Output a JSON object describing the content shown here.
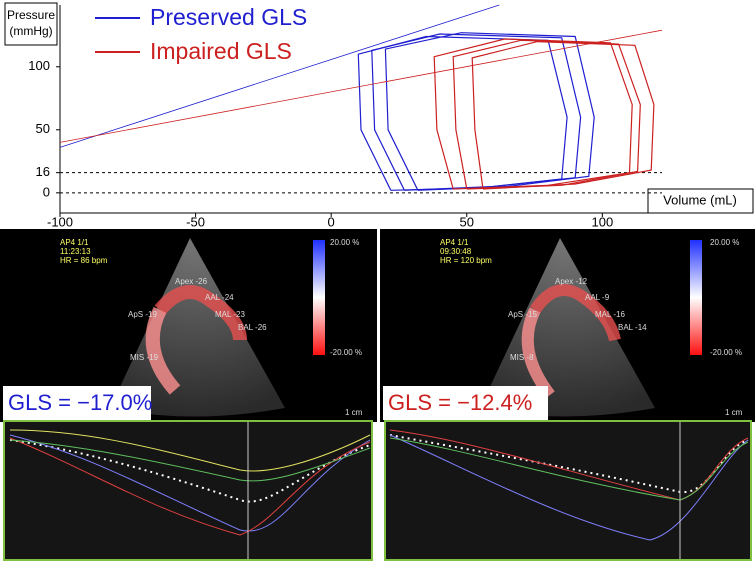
{
  "chart_data": {
    "type": "line",
    "x_label": "Volume (mL)",
    "y_label": "Pressure (mmHg)",
    "xlim": [
      -100,
      122
    ],
    "xticks": [
      -100,
      -50,
      0,
      50,
      100
    ],
    "ylim": [
      -16,
      149
    ],
    "yticks": [
      0,
      16,
      50,
      100
    ],
    "reference_lines": [
      0,
      16
    ],
    "series": [
      {
        "name": "Preserved GLS",
        "color": "#1f1fd0",
        "espvr": {
          "x": [
            -100,
            62
          ],
          "values": [
            36,
            149
          ]
        },
        "loops": [
          {
            "x": [
              27,
              60,
              90,
              92,
              85,
              40,
              15,
              16,
              27
            ],
            "values": [
              2,
              5,
              12,
              60,
              123,
              126,
              113,
              50,
              2
            ]
          },
          {
            "x": [
              32,
              65,
              95,
              97,
              90,
              48,
              20,
              21,
              32
            ],
            "values": [
              2,
              5,
              13,
              60,
              124,
              127,
              114,
              50,
              2
            ]
          },
          {
            "x": [
              22,
              55,
              85,
              87,
              80,
              35,
              10,
              11,
              22
            ],
            "values": [
              2,
              4,
              11,
              60,
              121,
              124,
              110,
              50,
              2
            ]
          }
        ]
      },
      {
        "name": "Impaired GLS",
        "color": "#cc2020",
        "espvr": {
          "x": [
            -100,
            122
          ],
          "values": [
            40,
            129
          ]
        },
        "loops": [
          {
            "x": [
              50,
              85,
              113,
              114,
              106,
              70,
              45,
              46,
              50
            ],
            "values": [
              3,
              6,
              17,
              70,
              118,
              121,
              108,
              50,
              3
            ]
          },
          {
            "x": [
              45,
              80,
              110,
              111,
              103,
              64,
              38,
              39,
              45
            ],
            "values": [
              3,
              6,
              16,
              70,
              119,
              122,
              108,
              50,
              3
            ]
          },
          {
            "x": [
              56,
              90,
              118,
              119,
              112,
              76,
              52,
              53,
              56
            ],
            "values": [
              3,
              7,
              18,
              70,
              117,
              120,
              107,
              50,
              3
            ]
          }
        ]
      }
    ]
  },
  "panels": [
    {
      "gls": "GLS = −17.0%",
      "view": "AP4 1/1",
      "time": "11:23:13",
      "hr": "HR = 86 bpm",
      "scale_top": "20.00 %",
      "scale_bottom": "-20.00 %",
      "scale_bar": "1 cm",
      "segments": [
        "Apex -26",
        "AAL -24",
        "MAL -23",
        "BAL -26",
        "ApS -19",
        "MIS -19"
      ]
    },
    {
      "gls": "GLS = −12.4%",
      "view": "AP4 1/1",
      "time": "09:30:48",
      "hr": "HR = 120 bpm",
      "scale_top": "20.00 %",
      "scale_bottom": "-20.00 %",
      "scale_bar": "1 cm",
      "segments": [
        "Apex -12",
        "AAL -9",
        "MAL -16",
        "BAL -14",
        "ApS -15",
        "MIS -8"
      ]
    }
  ]
}
